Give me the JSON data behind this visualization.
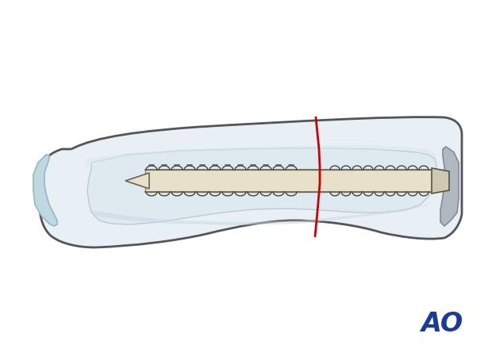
{
  "bg_color": "#ffffff",
  "bone_outline_color": "#555555",
  "bone_fill_color": "#e8eff5",
  "bone_inner_fill": "#f0f5f8",
  "cortex_color": "#c8d8e0",
  "screw_body_color": "#e8e0c8",
  "screw_thread_color": "#444444",
  "screw_tip_color": "#d8d0b8",
  "fracture_line_color": "#cc0000",
  "ao_logo_color": "#1a3a9c",
  "shadow_color": "#d0dce4",
  "articular_color": "#b8d0d8"
}
